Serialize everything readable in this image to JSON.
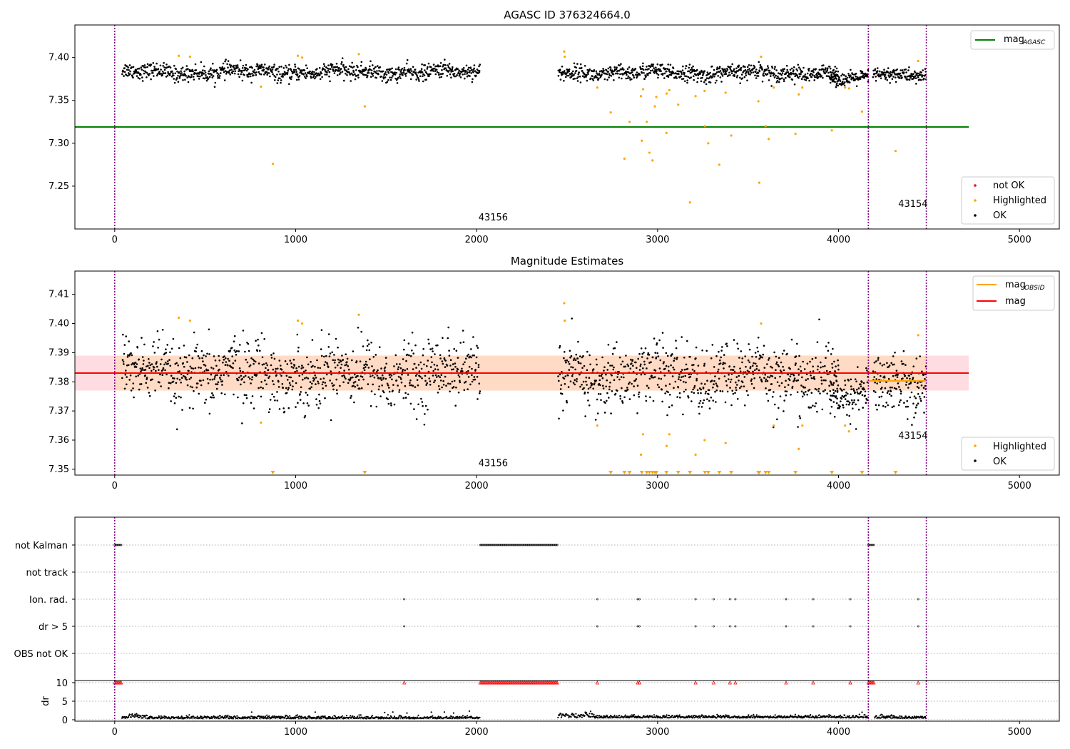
{
  "colors": {
    "ok": "#000000",
    "highlighted": "#ffa500",
    "not_ok": "#ff0000",
    "agasc_line": "#008000",
    "mag_line": "#ff0000",
    "obsid_line": "#ffa500",
    "obsid_vline": "#800080",
    "band_mag": "#ffc0cb",
    "band_obs": "#ffdab9",
    "grid": "#b0b0b0"
  },
  "obsids": [
    {
      "id": "43156",
      "start": 0,
      "end": 4165
    },
    {
      "id": "43154",
      "start": 4165,
      "end": 4485
    }
  ],
  "chart_data": [
    {
      "type": "scatter",
      "title": "AGASC ID 376324664.0",
      "xlabel": "",
      "ylabel": "",
      "xlim": [
        -220,
        5220
      ],
      "ylim": [
        7.2,
        7.438
      ],
      "xticks": [
        "0",
        "1000",
        "2000",
        "3000",
        "4000",
        "5000"
      ],
      "yticks": [
        "7.25",
        "7.30",
        "7.35",
        "7.40"
      ],
      "grid": false,
      "mag_agasc": 7.319,
      "legend_upper": {
        "position": "upper-right",
        "entries": [
          {
            "label": "mag",
            "sub": "AGASC"
          }
        ]
      },
      "legend_lower": {
        "position": "lower-right",
        "entries": [
          {
            "label": "not OK"
          },
          {
            "label": "Highlighted"
          },
          {
            "label": "OK"
          }
        ]
      },
      "ok_series": [
        {
          "name": "OK",
          "segments": [
            {
              "x0": 40,
              "x1": 2020,
              "y": 7.383,
              "noise": 0.0045,
              "n": 900
            },
            {
              "x0": 2450,
              "x1": 4000,
              "y": 7.382,
              "noise": 0.0045,
              "n": 720
            },
            {
              "x0": 3950,
              "x1": 4165,
              "y": 7.374,
              "noise": 0.004,
              "n": 110
            },
            {
              "x0": 4190,
              "x1": 4485,
              "y": 7.381,
              "noise": 0.004,
              "n": 150
            }
          ]
        }
      ],
      "highlighted": [
        [
          354,
          7.402
        ],
        [
          416,
          7.401
        ],
        [
          808,
          7.366
        ],
        [
          874,
          7.276
        ],
        [
          1012,
          7.402
        ],
        [
          1036,
          7.4
        ],
        [
          1349,
          7.404
        ],
        [
          1382,
          7.343
        ],
        [
          2484,
          7.407
        ],
        [
          2487,
          7.401
        ],
        [
          2667,
          7.365
        ],
        [
          2741,
          7.336
        ],
        [
          2817,
          7.282
        ],
        [
          2845,
          7.325
        ],
        [
          2908,
          7.355
        ],
        [
          2913,
          7.303
        ],
        [
          2920,
          7.363
        ],
        [
          2940,
          7.325
        ],
        [
          2955,
          7.289
        ],
        [
          2972,
          7.28
        ],
        [
          2985,
          7.343
        ],
        [
          2993,
          7.354
        ],
        [
          3049,
          7.312
        ],
        [
          3050,
          7.358
        ],
        [
          3065,
          7.362
        ],
        [
          3114,
          7.345
        ],
        [
          3179,
          7.231
        ],
        [
          3210,
          7.355
        ],
        [
          3260,
          7.361
        ],
        [
          3262,
          7.32
        ],
        [
          3280,
          7.3
        ],
        [
          3341,
          7.275
        ],
        [
          3376,
          7.359
        ],
        [
          3407,
          7.309
        ],
        [
          3557,
          7.349
        ],
        [
          3562,
          7.254
        ],
        [
          3572,
          7.401
        ],
        [
          3597,
          7.32
        ],
        [
          3614,
          7.305
        ],
        [
          3642,
          7.365
        ],
        [
          3762,
          7.311
        ],
        [
          3780,
          7.357
        ],
        [
          3800,
          7.365
        ],
        [
          3963,
          7.315
        ],
        [
          4036,
          7.365
        ],
        [
          4058,
          7.364
        ],
        [
          4130,
          7.337
        ],
        [
          4315,
          7.291
        ],
        [
          4440,
          7.396
        ]
      ],
      "not_ok": [],
      "annotations": [
        {
          "text": "43156",
          "x": 2010,
          "y": 7.21
        },
        {
          "text": "43154",
          "x": 4330,
          "y": 7.226
        }
      ]
    },
    {
      "type": "scatter",
      "title": "Magnitude Estimates",
      "xlabel": "",
      "ylabel": "",
      "xlim": [
        -220,
        5220
      ],
      "ylim": [
        7.348,
        7.418
      ],
      "xticks": [
        "0",
        "1000",
        "2000",
        "3000",
        "4000",
        "5000"
      ],
      "yticks": [
        "7.35",
        "7.36",
        "7.37",
        "7.38",
        "7.39",
        "7.40",
        "7.41"
      ],
      "grid": false,
      "mag": 7.383,
      "mag_band": [
        7.377,
        7.389
      ],
      "mag_obsid": [
        {
          "x0": 4165,
          "x1": 4485,
          "y": 7.3803
        }
      ],
      "legend_upper": {
        "position": "upper-right",
        "entries": [
          {
            "label": "mag",
            "sub": "OBSID"
          },
          {
            "label": "mag"
          }
        ]
      },
      "legend_lower": {
        "position": "lower-right",
        "entries": [
          {
            "label": "Highlighted"
          },
          {
            "label": "OK"
          }
        ]
      },
      "ok_series": [
        {
          "name": "OK",
          "segments": [
            {
              "x0": 40,
              "x1": 2020,
              "y": 7.383,
              "noise": 0.0055,
              "n": 900
            },
            {
              "x0": 2450,
              "x1": 4000,
              "y": 7.382,
              "noise": 0.0055,
              "n": 720
            },
            {
              "x0": 3950,
              "x1": 4165,
              "y": 7.374,
              "noise": 0.004,
              "n": 110
            },
            {
              "x0": 4190,
              "x1": 4485,
              "y": 7.381,
              "noise": 0.005,
              "n": 150
            }
          ]
        }
      ],
      "highlighted": [
        [
          354,
          7.402
        ],
        [
          416,
          7.401
        ],
        [
          808,
          7.366
        ],
        [
          1012,
          7.401
        ],
        [
          1036,
          7.4
        ],
        [
          1349,
          7.403
        ],
        [
          2484,
          7.407
        ],
        [
          2487,
          7.401
        ],
        [
          2667,
          7.365
        ],
        [
          2908,
          7.355
        ],
        [
          2920,
          7.362
        ],
        [
          3050,
          7.358
        ],
        [
          3065,
          7.362
        ],
        [
          3210,
          7.355
        ],
        [
          3260,
          7.36
        ],
        [
          3376,
          7.359
        ],
        [
          3572,
          7.4
        ],
        [
          3642,
          7.365
        ],
        [
          3780,
          7.357
        ],
        [
          3800,
          7.365
        ],
        [
          4036,
          7.365
        ],
        [
          4058,
          7.363
        ],
        [
          4440,
          7.396
        ]
      ],
      "clipped_low_x": [
        874,
        1382,
        2741,
        2817,
        2845,
        2913,
        2940,
        2955,
        2972,
        2985,
        2993,
        3049,
        3114,
        3179,
        3262,
        3280,
        3341,
        3407,
        3557,
        3562,
        3597,
        3614,
        3762,
        3963,
        4130,
        4315
      ],
      "annotations": [
        {
          "text": "43156",
          "x": 2010,
          "y": 7.351
        },
        {
          "text": "43154",
          "x": 4330,
          "y": 7.3605
        }
      ]
    },
    {
      "type": "scatter",
      "title": "",
      "xlabel": "",
      "ylabel": "",
      "xlim": [
        -220,
        5220
      ],
      "xticks": [
        "0",
        "1000",
        "2000",
        "3000",
        "4000",
        "5000"
      ],
      "flag_labels": [
        "not Kalman",
        "not track",
        "Ion. rad.",
        "dr > 5",
        "OBS not OK"
      ],
      "flags": {
        "not Kalman": [
          [
            0,
            40
          ],
          [
            2020,
            2450
          ],
          [
            4165,
            4200
          ]
        ],
        "not track": [],
        "Ion. rad.": [
          1600,
          2667,
          2890,
          2900,
          3210,
          3310,
          3400,
          3430,
          3710,
          3860,
          4065,
          4440
        ],
        "dr > 5": [
          1600,
          2667,
          2890,
          2900,
          3210,
          3310,
          3400,
          3430,
          3710,
          3860,
          4065,
          4440
        ],
        "OBS not OK": []
      }
    },
    {
      "type": "scatter",
      "title": "",
      "xlabel": "",
      "ylabel": "dr",
      "xlim": [
        -220,
        5220
      ],
      "ylim": [
        0,
        10
      ],
      "xticks": [
        "0",
        "1000",
        "2000",
        "3000",
        "4000",
        "5000"
      ],
      "yticks": [
        "0",
        "5",
        "10"
      ],
      "dr_clipped_x": [
        [
          0,
          40
        ],
        [
          2020,
          2450
        ],
        [
          4165,
          4200
        ]
      ],
      "dr_clipped_points": [
        1600,
        2667,
        2890,
        2900,
        3210,
        3310,
        3400,
        3430,
        3710,
        3860,
        4065,
        4440
      ]
    }
  ]
}
